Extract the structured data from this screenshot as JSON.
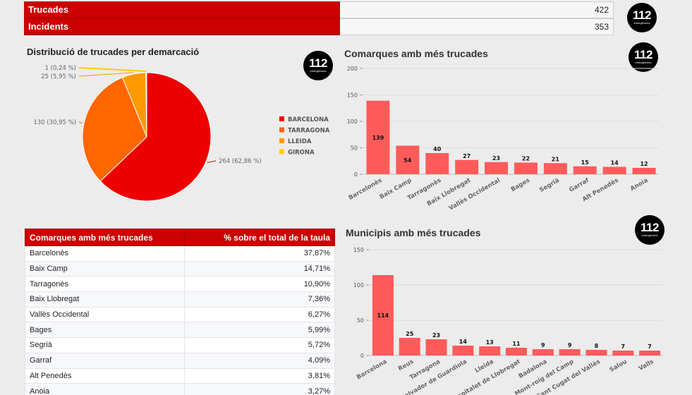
{
  "summary": [
    {
      "label": "Trucades",
      "value": "422"
    },
    {
      "label": "Incidents",
      "value": "353"
    }
  ],
  "logo": {
    "number": "112",
    "sub": "emergències"
  },
  "pie_title": "Distribució de trucades per demarcació",
  "bar1_title": "Comarques amb més trucades",
  "bar2_title": "Municipis amb més trucades",
  "table": {
    "headers": [
      "Comarques amb més trucades",
      "% sobre el total de la taula"
    ],
    "rows": [
      [
        "Barcelonès",
        "37,87%"
      ],
      [
        "Baix Camp",
        "14,71%"
      ],
      [
        "Tarragonès",
        "10,90%"
      ],
      [
        "Baix Llobregat",
        "7,36%"
      ],
      [
        "Vallès Occidental",
        "6,27%"
      ],
      [
        "Bages",
        "5,99%"
      ],
      [
        "Segrià",
        "5,72%"
      ],
      [
        "Garraf",
        "4,09%"
      ],
      [
        "Alt Penedès",
        "3,81%"
      ],
      [
        "Anoia",
        "3,27%"
      ]
    ]
  },
  "chart_data": [
    {
      "type": "pie",
      "title": "Distribució de trucades per demarcació",
      "labels": [
        "BARCELONA",
        "TARRAGONA",
        "LLEIDA",
        "GIRONA"
      ],
      "values": [
        264,
        130,
        25,
        1
      ],
      "data_labels": [
        "264 (62,86 %)",
        "130 (30,95 %)",
        "25 (5,95 %)",
        "1 (0,24 %)"
      ],
      "colors": [
        "#ee0000",
        "#ff6600",
        "#ff9900",
        "#ffcc00"
      ],
      "legend": "right"
    },
    {
      "type": "bar",
      "title": "Comarques amb més trucades",
      "categories": [
        "Barcelonès",
        "Baix Camp",
        "Tarragonès",
        "Baix Llobregat",
        "Vallès Occidental",
        "Bages",
        "Segrià",
        "Garraf",
        "Alt Penedès",
        "Anoia"
      ],
      "values": [
        139,
        54,
        40,
        27,
        23,
        22,
        21,
        15,
        14,
        12
      ],
      "yticks": [
        0,
        50,
        100,
        150,
        200
      ],
      "ylim": [
        0,
        200
      ],
      "color": "#ff5b5b"
    },
    {
      "type": "bar",
      "title": "Municipis amb més trucades",
      "categories": [
        "Barcelona",
        "Reus",
        "Tarragona",
        "Sant Salvador de Guardiola",
        "Lleida",
        "L'Hospitalet de Llobregat",
        "Badalona",
        "Mont-roig del Camp",
        "Sant Cugat del Vallès",
        "Salou",
        "Valls"
      ],
      "values": [
        114,
        25,
        23,
        14,
        13,
        11,
        9,
        9,
        8,
        7,
        7
      ],
      "yticks": [
        0,
        50,
        100,
        150
      ],
      "ylim": [
        0,
        150
      ],
      "color": "#ff5b5b"
    }
  ]
}
